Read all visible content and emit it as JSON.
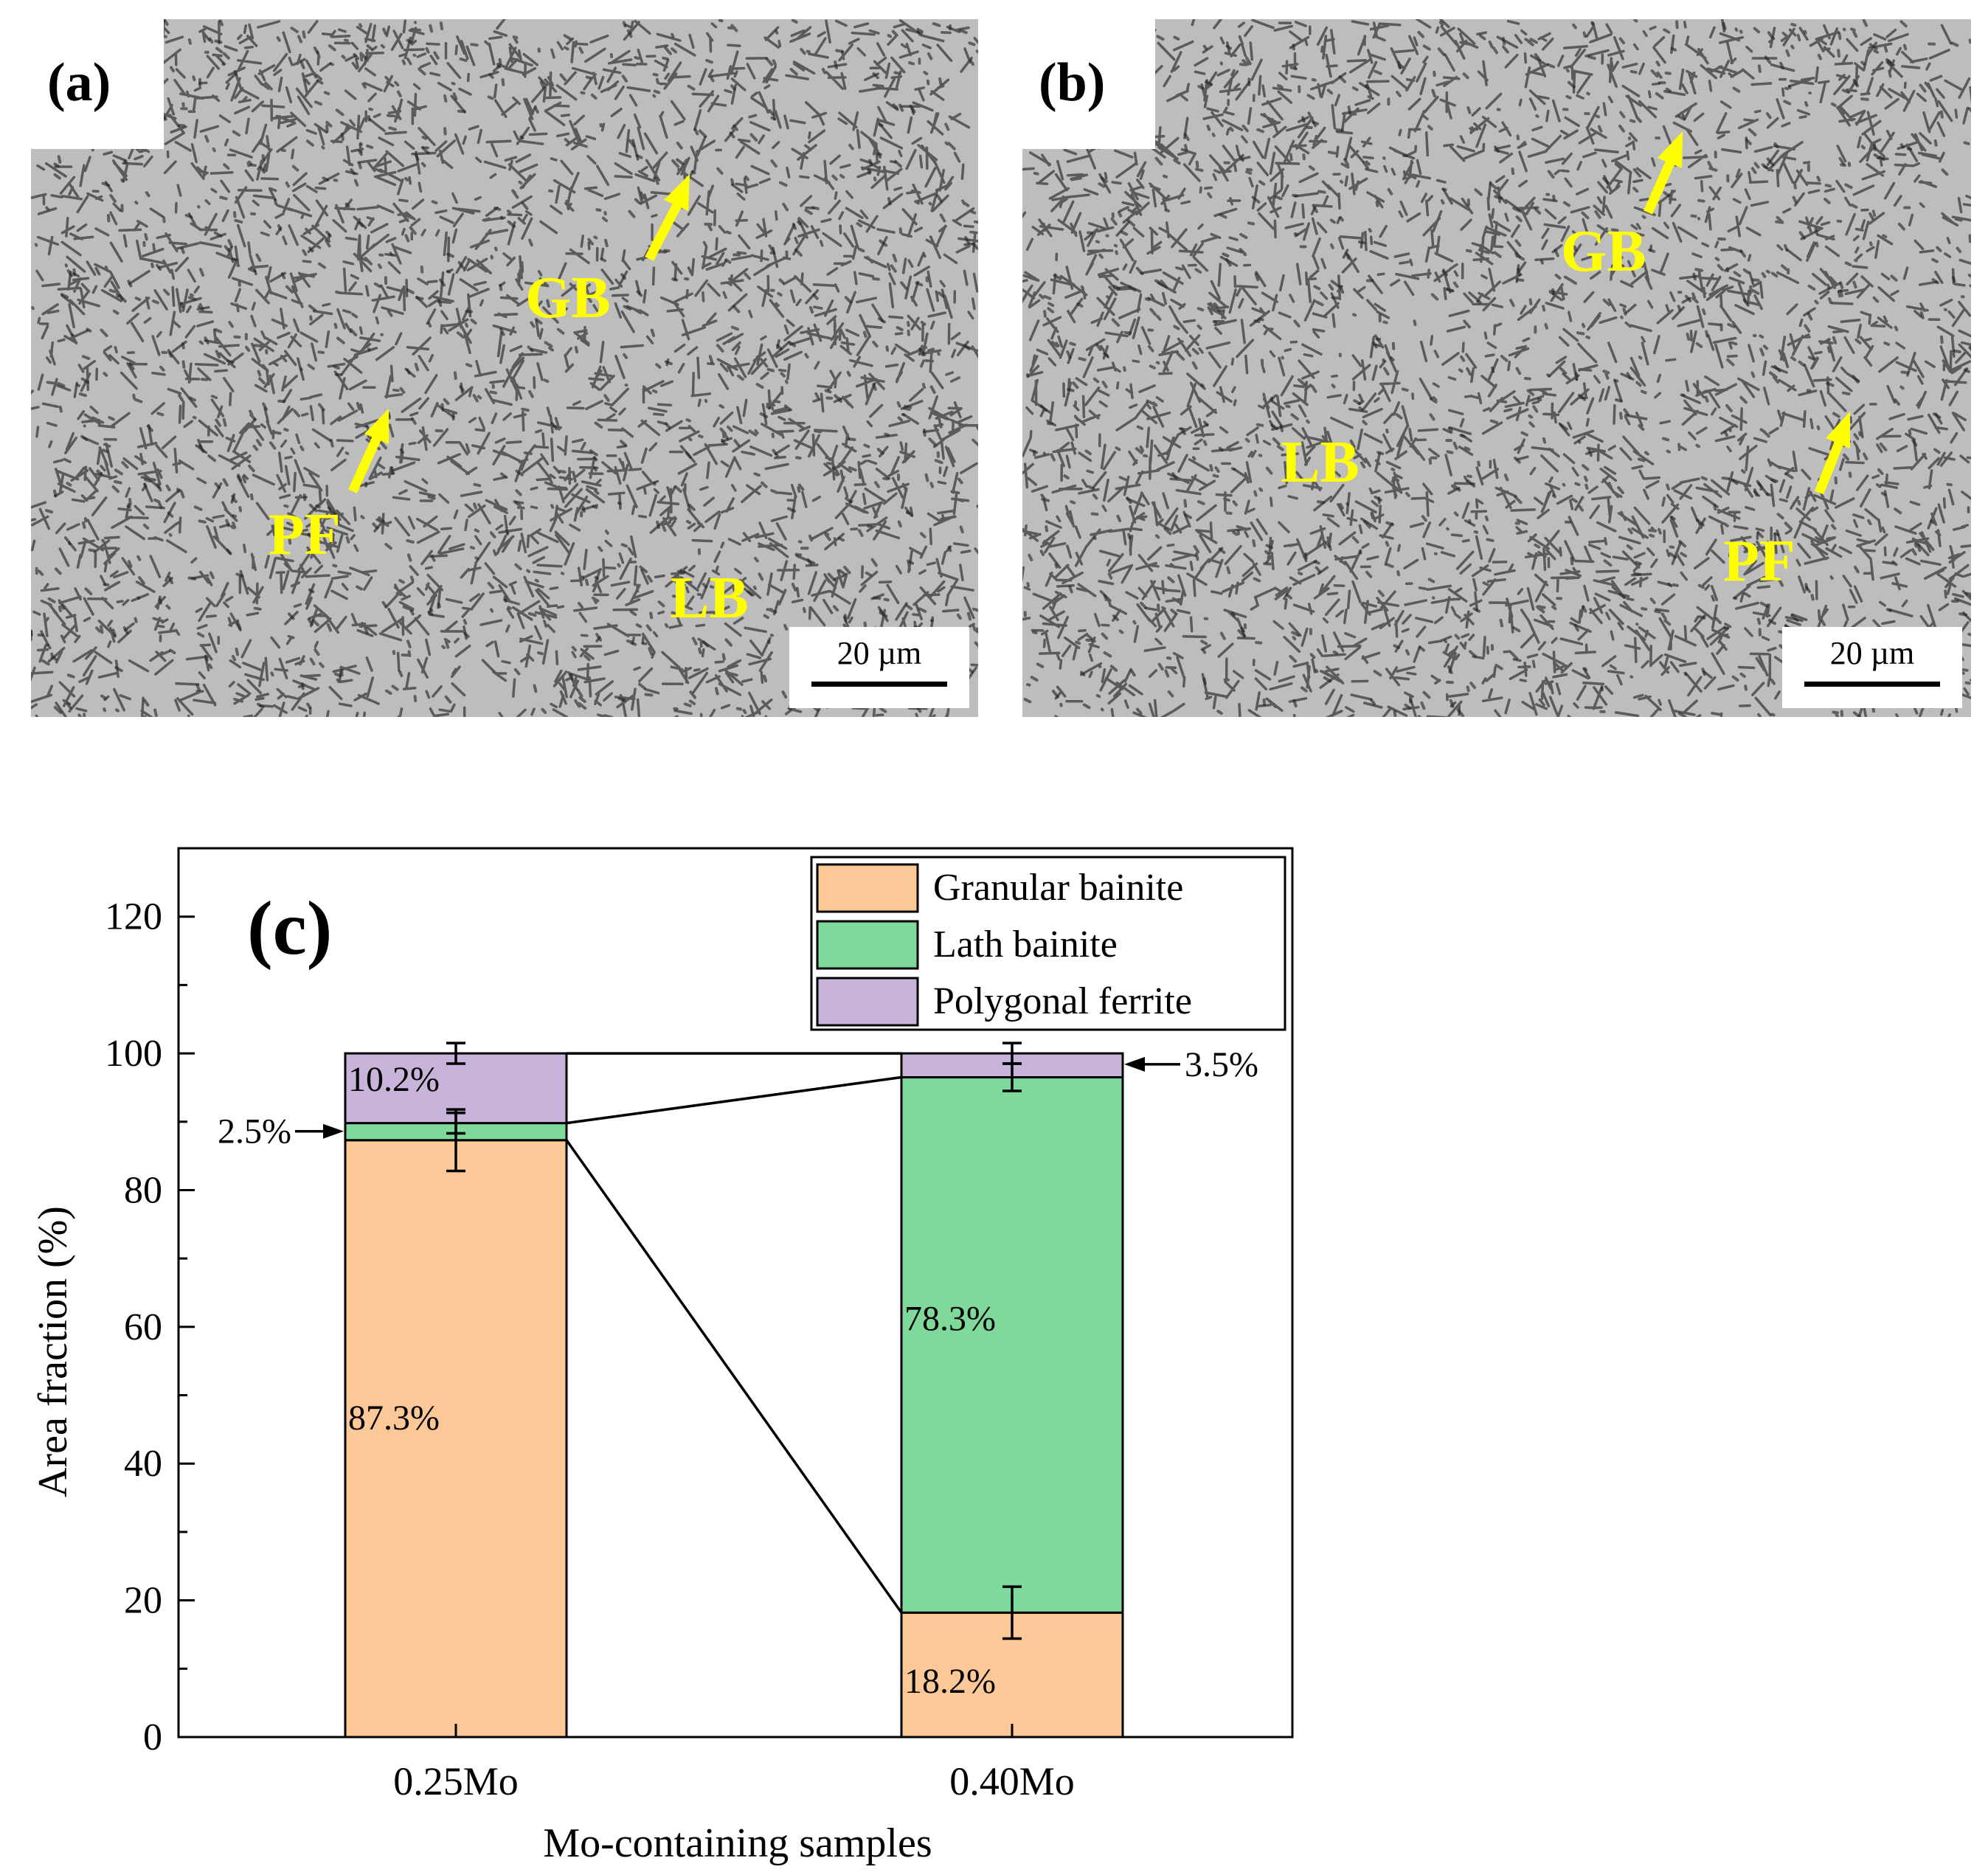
{
  "panels": {
    "a": {
      "label": "(a)",
      "phases": [
        "GB",
        "PF",
        "LB"
      ],
      "scale_bar": "20 µm"
    },
    "b": {
      "label": "(b)",
      "phases": [
        "GB",
        "LB",
        "PF"
      ],
      "scale_bar": "20 µm"
    }
  },
  "colors": {
    "annotation": "#ffff00",
    "granular": "#fdc897",
    "lath": "#7ed99b",
    "polygonal": "#c8b3da"
  },
  "chart_data": {
    "type": "bar",
    "stacked": true,
    "panel_label": "(c)",
    "categories": [
      "0.25Mo",
      "0.40Mo"
    ],
    "series": [
      {
        "name": "Granular bainite",
        "values": [
          87.3,
          18.2
        ],
        "errors": [
          4.5,
          3.8
        ],
        "labels": [
          "87.3%",
          "18.2%"
        ]
      },
      {
        "name": "Lath bainite",
        "values": [
          2.5,
          78.3
        ],
        "errors": [
          1.5,
          2.0
        ],
        "labels": [
          "2.5%",
          "78.3%"
        ]
      },
      {
        "name": "Polygonal ferrite",
        "values": [
          10.2,
          3.5
        ],
        "errors": [
          1.5,
          1.5
        ],
        "labels": [
          "10.2%",
          "3.5%"
        ]
      }
    ],
    "xlabel": "Mo-containing samples",
    "ylabel": "Area fraction (%)",
    "ylim": [
      0,
      130
    ],
    "yticks": [
      0,
      20,
      40,
      60,
      80,
      100,
      120
    ],
    "legend": "top-right"
  }
}
